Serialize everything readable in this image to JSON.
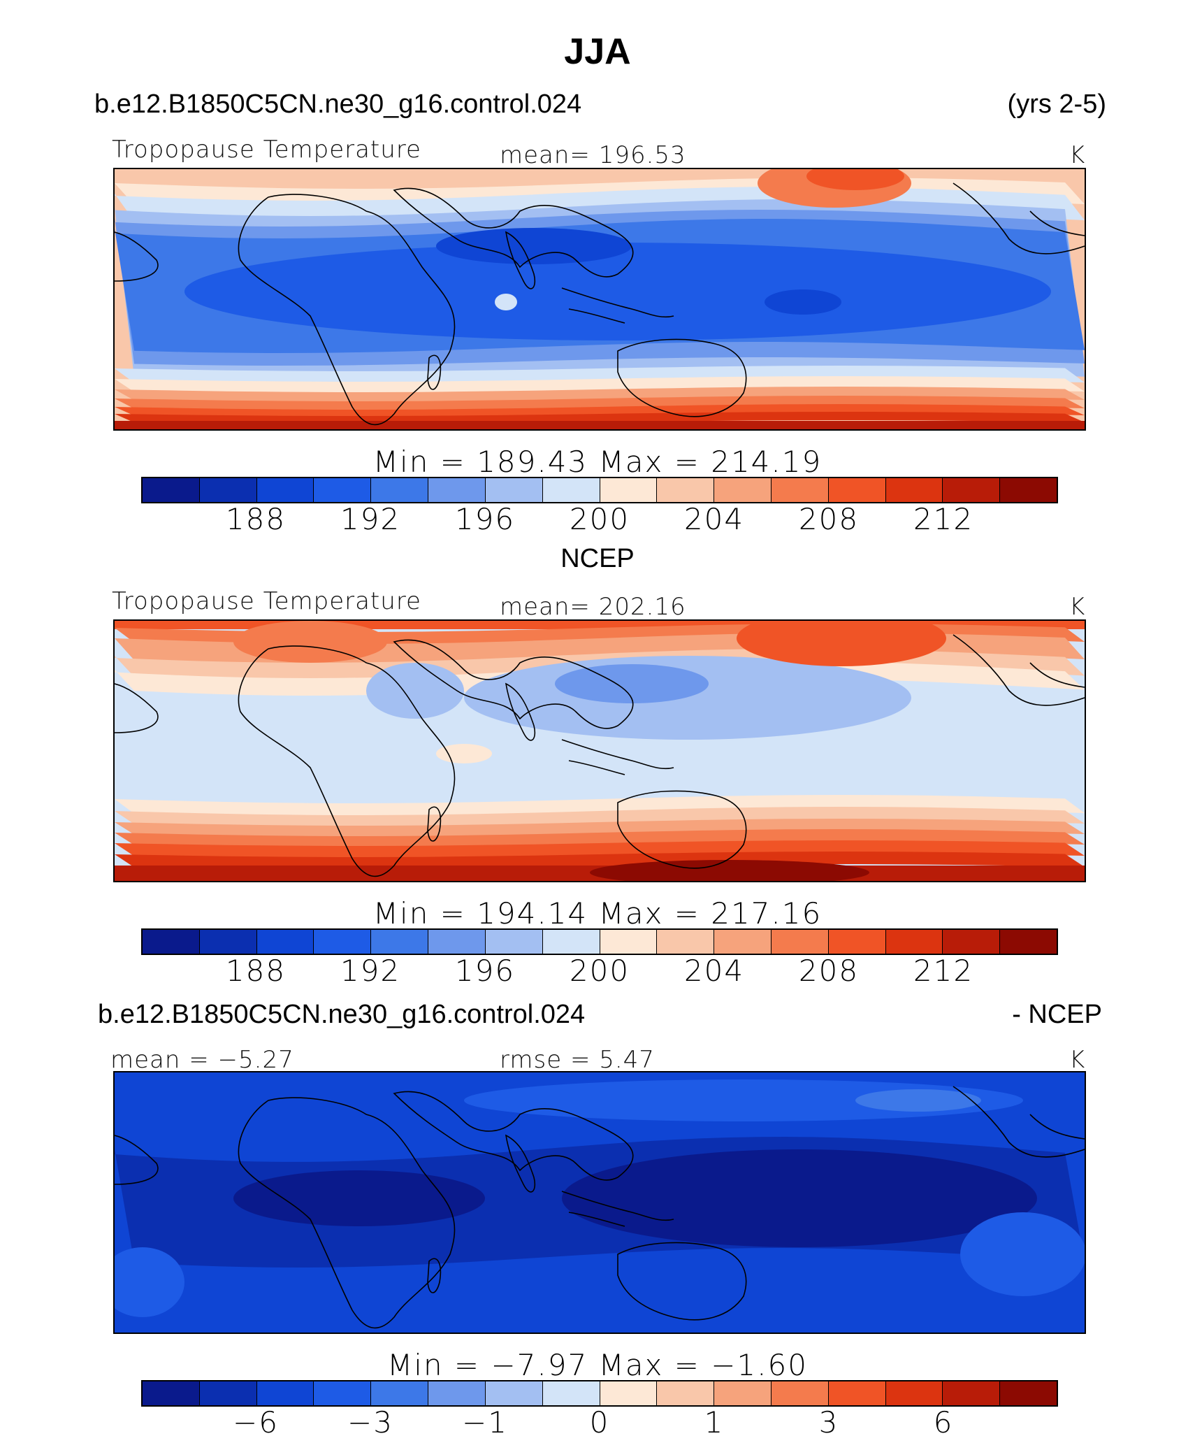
{
  "title": "JJA",
  "case_name": "b.e12.B1850C5CN.ne30_g16.control.024",
  "years": "(yrs 2-5)",
  "palette": [
    "#0a1a8c",
    "#0b2fb0",
    "#0f45d4",
    "#1e5be6",
    "#3d78e8",
    "#6e98ec",
    "#a3bff2",
    "#d3e4f8",
    "#fde8d6",
    "#f9c7aa",
    "#f6a37c",
    "#f47b4d",
    "#f05426",
    "#dc3410",
    "#b81c08",
    "#8c0a02"
  ],
  "panels": [
    {
      "left_label": "Tropopause Temperature",
      "center_label": "mean=  196.53",
      "units": "K",
      "minmax": "Min  =  189.43  Max  =  214.19",
      "ticks": [
        "188",
        "192",
        "196",
        "200",
        "204",
        "208",
        "212"
      ],
      "field": "model"
    },
    {
      "heading": "NCEP",
      "left_label": "Tropopause Temperature",
      "center_label": "mean=  202.16",
      "units": "K",
      "minmax": "Min  =  194.14  Max  =  217.16",
      "ticks": [
        "188",
        "192",
        "196",
        "200",
        "204",
        "208",
        "212"
      ],
      "field": "ncep"
    },
    {
      "heading_left": "b.e12.B1850C5CN.ne30_g16.control.024",
      "heading_right": "- NCEP",
      "left_label": "mean =   −5.27",
      "center_label": "rmse =      5.47",
      "units": "K",
      "minmax": "Min  =    −7.97  Max  =    −1.60",
      "ticks": [
        "−6",
        "−3",
        "−1",
        "0",
        "1",
        "3",
        "6"
      ],
      "field": "diff"
    }
  ]
}
